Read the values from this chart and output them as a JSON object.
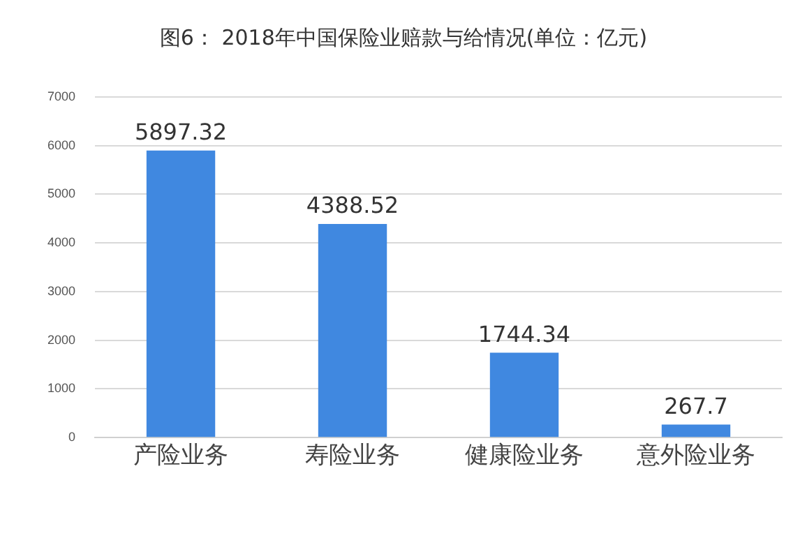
{
  "chart_data": {
    "type": "bar",
    "title": "图6： 2018年中国保险业赔款与给情况(单位：亿元)",
    "categories": [
      "产险业务",
      "寿险业务",
      "健康险业务",
      "意外险业务"
    ],
    "values": [
      5897.32,
      4388.52,
      1744.34,
      267.7
    ],
    "color": "#4088e0",
    "ylim": [
      0,
      7000
    ],
    "yticks": [
      0,
      1000,
      2000,
      3000,
      4000,
      5000,
      6000,
      7000
    ],
    "grid": "y",
    "data_labels": true
  }
}
